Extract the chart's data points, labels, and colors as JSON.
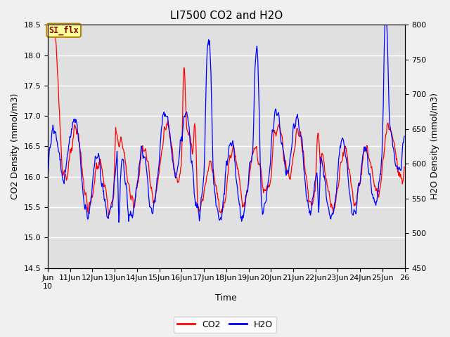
{
  "title": "LI7500 CO2 and H2O",
  "xlabel": "Time",
  "ylabel_left": "CO2 Density (mmol/m3)",
  "ylabel_right": "H2O Density (mmol/m3)",
  "co2_color": "red",
  "h2o_color": "blue",
  "co2_ylim": [
    14.5,
    18.5
  ],
  "h2o_ylim": [
    450,
    800
  ],
  "annotation_text": "SI_flx",
  "background_color": "#e0e0e0",
  "legend_co2": "CO2",
  "legend_h2o": "H2O",
  "fig_bg": "#f0f0f0",
  "title_fontsize": 11,
  "axis_fontsize": 9,
  "tick_fontsize": 8
}
